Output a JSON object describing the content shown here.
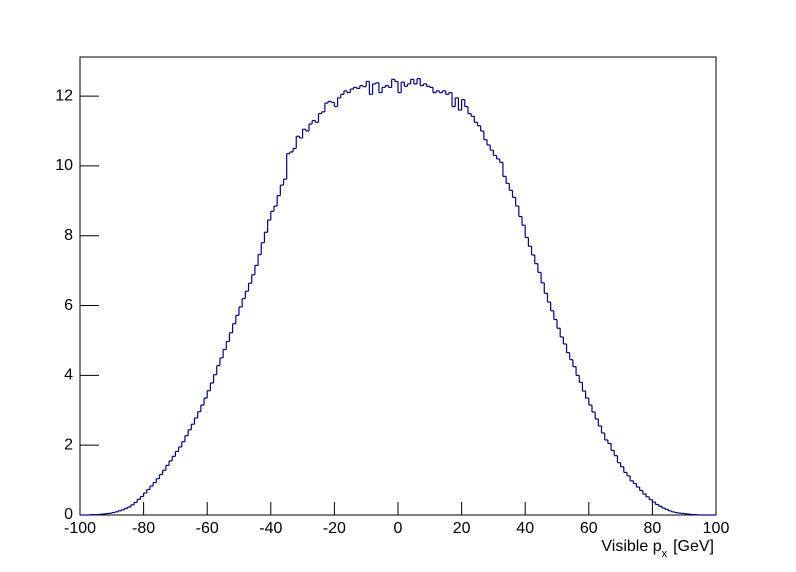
{
  "chart_data": {
    "type": "histogram",
    "x_label": {
      "text": "Visible p",
      "subscript": "x",
      "unit": "[GeV]"
    },
    "color": "#000099",
    "bins": [
      -100,
      -99,
      -98,
      -97,
      -96,
      -95,
      -94,
      -93,
      -92,
      -91,
      -90,
      -89,
      -88,
      -87,
      -86,
      -85,
      -84,
      -83,
      -82,
      -81,
      -80,
      -79,
      -78,
      -77,
      -76,
      -75,
      -74,
      -73,
      -72,
      -71,
      -70,
      -69,
      -68,
      -67,
      -66,
      -65,
      -64,
      -63,
      -62,
      -61,
      -60,
      -59,
      -58,
      -57,
      -56,
      -55,
      -54,
      -53,
      -52,
      -51,
      -50,
      -49,
      -48,
      -47,
      -46,
      -45,
      -44,
      -43,
      -42,
      -41,
      -40,
      -39,
      -38,
      -37,
      -36,
      -35,
      -34,
      -33,
      -32,
      -31,
      -30,
      -29,
      -28,
      -27,
      -26,
      -25,
      -24,
      -23,
      -22,
      -21,
      -20,
      -19,
      -18,
      -17,
      -16,
      -15,
      -14,
      -13,
      -12,
      -11,
      -10,
      -9,
      -8,
      -7,
      -6,
      -5,
      -4,
      -3,
      -2,
      -1,
      0,
      1,
      2,
      3,
      4,
      5,
      6,
      7,
      8,
      9,
      10,
      11,
      12,
      13,
      14,
      15,
      16,
      17,
      18,
      19,
      20,
      21,
      22,
      23,
      24,
      25,
      26,
      27,
      28,
      29,
      30,
      31,
      32,
      33,
      34,
      35,
      36,
      37,
      38,
      39,
      40,
      41,
      42,
      43,
      44,
      45,
      46,
      47,
      48,
      49,
      50,
      51,
      52,
      53,
      54,
      55,
      56,
      57,
      58,
      59,
      60,
      61,
      62,
      63,
      64,
      65,
      66,
      67,
      68,
      69,
      70,
      71,
      72,
      73,
      74,
      75,
      76,
      77,
      78,
      79,
      80,
      81,
      82,
      83,
      84,
      85,
      86,
      87,
      88,
      89,
      90,
      91,
      92,
      93,
      94,
      95,
      96,
      97,
      98,
      99,
      100
    ],
    "values": [
      0,
      0,
      0,
      0.01,
      0.01,
      0.01,
      0.02,
      0.03,
      0.04,
      0.05,
      0.07,
      0.09,
      0.12,
      0.15,
      0.19,
      0.23,
      0.29,
      0.36,
      0.45,
      0.53,
      0.63,
      0.73,
      0.83,
      0.93,
      1.04,
      1.16,
      1.28,
      1.42,
      1.55,
      1.68,
      1.82,
      1.95,
      2.1,
      2.27,
      2.44,
      2.6,
      2.78,
      2.96,
      3.15,
      3.35,
      3.56,
      3.78,
      4.02,
      4.28,
      4.5,
      4.74,
      4.97,
      5.22,
      5.48,
      5.72,
      5.96,
      6.2,
      6.41,
      6.64,
      6.88,
      7.15,
      7.46,
      7.8,
      8.1,
      8.45,
      8.7,
      8.85,
      9.15,
      9.45,
      9.62,
      10.35,
      10.4,
      10.5,
      10.85,
      10.8,
      11.05,
      11.0,
      11.2,
      11.3,
      11.25,
      11.5,
      11.55,
      11.8,
      11.85,
      11.82,
      11.7,
      11.95,
      12.05,
      12.15,
      12.1,
      12.2,
      12.25,
      12.22,
      12.3,
      12.27,
      12.42,
      12.05,
      12.35,
      12.38,
      12.1,
      12.25,
      12.3,
      12.25,
      12.48,
      12.42,
      12.1,
      12.4,
      12.28,
      12.35,
      12.48,
      12.35,
      12.5,
      12.3,
      12.35,
      12.28,
      12.25,
      12.1,
      12.15,
      12.1,
      12.15,
      12.05,
      12.1,
      11.7,
      11.95,
      11.6,
      11.9,
      11.7,
      11.5,
      11.42,
      11.25,
      11.15,
      11.0,
      10.75,
      10.6,
      10.45,
      10.3,
      10.2,
      10.1,
      9.7,
      9.5,
      9.3,
      9.1,
      8.85,
      8.55,
      8.3,
      7.95,
      7.7,
      7.45,
      7.2,
      6.95,
      6.65,
      6.35,
      6.1,
      5.85,
      5.6,
      5.35,
      5.1,
      4.9,
      4.65,
      4.45,
      4.25,
      4.0,
      3.8,
      3.55,
      3.35,
      3.15,
      2.95,
      2.75,
      2.55,
      2.35,
      2.15,
      2.05,
      1.85,
      1.7,
      1.5,
      1.38,
      1.22,
      1.12,
      0.98,
      0.9,
      0.8,
      0.7,
      0.6,
      0.52,
      0.44,
      0.37,
      0.3,
      0.25,
      0.2,
      0.16,
      0.12,
      0.09,
      0.07,
      0.055,
      0.045,
      0.035,
      0.025,
      0.015,
      0.01,
      0.005,
      0,
      0,
      0,
      0,
      0
    ],
    "xlim": [
      -100,
      100
    ],
    "xticks": [
      -100,
      -80,
      -60,
      -40,
      -20,
      0,
      20,
      40,
      60,
      80,
      100
    ],
    "ylim": [
      0,
      13.12
    ],
    "yticks": [
      0,
      2,
      4,
      6,
      8,
      10,
      12
    ]
  }
}
